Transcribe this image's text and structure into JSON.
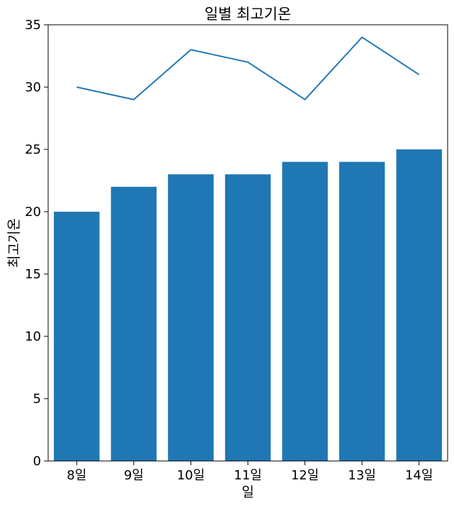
{
  "chart_data": {
    "type": "bar+line",
    "title": "일별 최고기온",
    "xlabel": "일",
    "ylabel": "최고기온",
    "categories": [
      "8일",
      "9일",
      "10일",
      "11일",
      "12일",
      "13일",
      "14일"
    ],
    "series": [
      {
        "name": "bar",
        "type": "bar",
        "values": [
          20,
          22,
          23,
          23,
          24,
          24,
          25
        ]
      },
      {
        "name": "line",
        "type": "line",
        "values": [
          30,
          29,
          33,
          32,
          29,
          34,
          31
        ]
      }
    ],
    "ylim": [
      0,
      35
    ],
    "yticks": [
      0,
      5,
      10,
      15,
      20,
      25,
      30,
      35
    ],
    "grid": false,
    "colors": {
      "bar": "#1f77b4",
      "line": "#1f77b4"
    }
  }
}
